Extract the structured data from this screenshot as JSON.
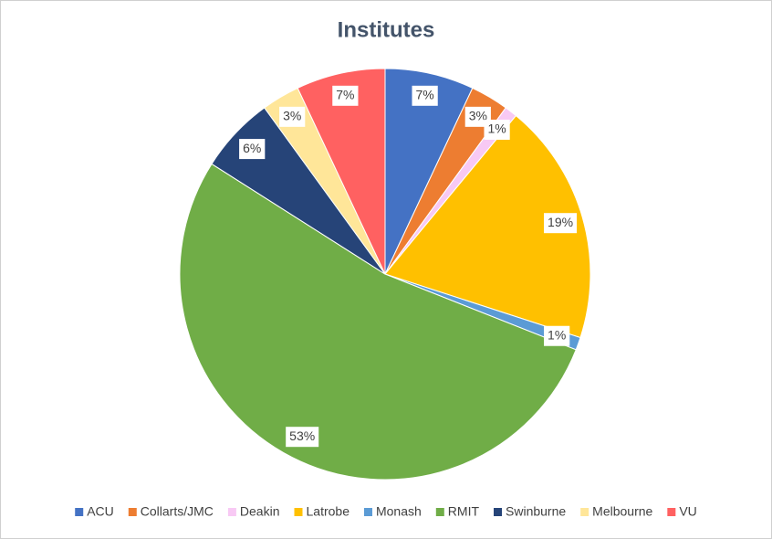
{
  "chart_data": {
    "type": "pie",
    "title": "Institutes",
    "categories": [
      "ACU",
      "Collarts/JMC",
      "Deakin",
      "Latrobe",
      "Monash",
      "RMIT",
      "Swinburne",
      "Melbourne",
      "VU"
    ],
    "values": [
      7,
      3,
      1,
      19,
      1,
      53,
      6,
      3,
      7
    ],
    "value_labels": [
      "7%",
      "3%",
      "1%",
      "19%",
      "1%",
      "53%",
      "6%",
      "3%",
      "7%"
    ],
    "colors": [
      "#4472c4",
      "#ed7d31",
      "#f8c9f4",
      "#ffc000",
      "#5b9bd5",
      "#70ad47",
      "#264478",
      "#ffe699",
      "#ff6161"
    ],
    "legend": "bottom"
  }
}
